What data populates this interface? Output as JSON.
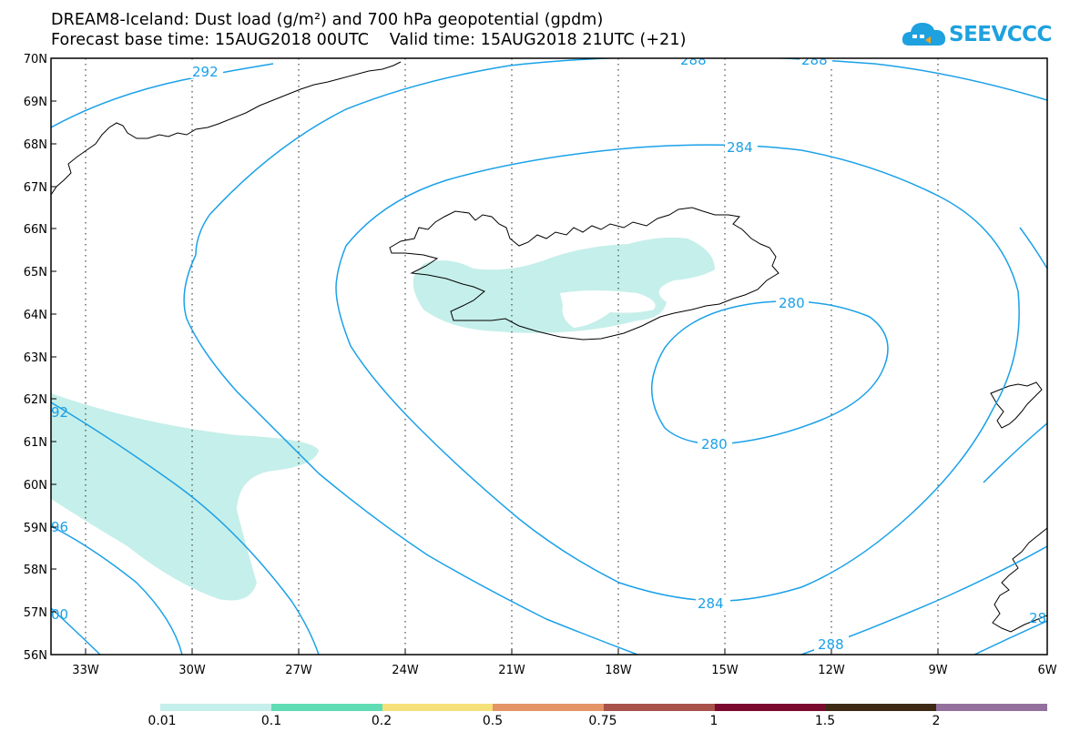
{
  "header": {
    "title_line1": "DREAM8-Iceland: Dust load (g/m²) and 700 hPa geopotential (gpdm)",
    "title_line2": "Forecast base time: 15AUG2018 00UTC    Valid time: 15AUG2018 21UTC (+21)"
  },
  "logo": {
    "text": "SEEVCCC",
    "color": "#1ea1df"
  },
  "map": {
    "lat_labels": [
      "70N",
      "69N",
      "68N",
      "67N",
      "66N",
      "65N",
      "64N",
      "63N",
      "62N",
      "61N",
      "60N",
      "59N",
      "58N",
      "57N",
      "56N"
    ],
    "lon_labels": [
      "33W",
      "30W",
      "27W",
      "24W",
      "21W",
      "18W",
      "15W",
      "12W",
      "9W",
      "6W"
    ],
    "contour_labels": {
      "c292_top": "292",
      "c288_top_a": "288",
      "c288_top_b": "288",
      "c284_upper": "284",
      "c280_upper": "280",
      "c280_lower": "280",
      "c284_lower": "284",
      "c288_lower": "288",
      "c292_left": "92",
      "c296_left": "96",
      "c300_left": "00",
      "c288_right_edge": "28"
    },
    "colors": {
      "contour": "#1aa1e8",
      "dust_fill": "#c5efea",
      "coastline": "#000000"
    }
  },
  "colorbar": {
    "colors": [
      "#c5efea",
      "#5fdcb4",
      "#f6e07a",
      "#e49466",
      "#a8524a",
      "#7a0a2e",
      "#3e2a14",
      "#93709e"
    ],
    "labels": [
      "0.01",
      "0.1",
      "0.2",
      "0.5",
      "0.75",
      "1",
      "1.5",
      "2"
    ]
  }
}
